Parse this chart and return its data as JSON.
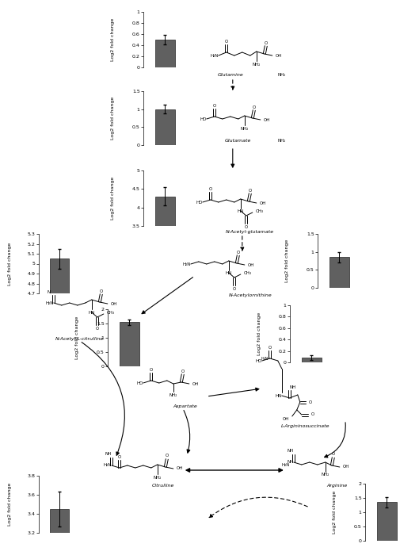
{
  "background": "#ffffff",
  "bar_color": "#606060",
  "error_color": "#333333",
  "bars": {
    "glutamine": {
      "value": 0.5,
      "error": 0.08,
      "ylim": [
        0,
        1
      ],
      "yticks": [
        0,
        0.2,
        0.4,
        0.6,
        0.8,
        1
      ]
    },
    "glutamate": {
      "value": 1.0,
      "error": 0.12,
      "ylim": [
        0,
        1.5
      ],
      "yticks": [
        0,
        0.5,
        1,
        1.5
      ]
    },
    "n_acetyl_glu": {
      "value": 4.3,
      "error": 0.25,
      "ylim": [
        3.5,
        5
      ],
      "yticks": [
        3.5,
        4,
        4.5,
        5
      ]
    },
    "n_acetylornithine": {
      "value": 0.85,
      "error": 0.15,
      "ylim": [
        0,
        1.5
      ],
      "yticks": [
        0,
        0.5,
        1,
        1.5
      ]
    },
    "n_acetyl_cit": {
      "value": 5.05,
      "error": 0.1,
      "ylim": [
        4.7,
        5.3
      ],
      "yticks": [
        4.7,
        4.8,
        4.9,
        5.0,
        5.1,
        5.2,
        5.3
      ]
    },
    "aspartate": {
      "value": 1.55,
      "error": 0.1,
      "ylim": [
        0,
        2
      ],
      "yticks": [
        0,
        0.5,
        1,
        1.5,
        2
      ]
    },
    "l_argsucc": {
      "value": 0.08,
      "error": 0.04,
      "ylim": [
        0,
        1
      ],
      "yticks": [
        0,
        0.2,
        0.4,
        0.6,
        0.8,
        1
      ]
    },
    "citrulline": {
      "value": 3.45,
      "error": 0.18,
      "ylim": [
        3.2,
        3.8
      ],
      "yticks": [
        3.2,
        3.4,
        3.6,
        3.8
      ]
    },
    "arginine": {
      "value": 1.35,
      "error": 0.18,
      "ylim": [
        0,
        2
      ],
      "yticks": [
        0,
        0.5,
        1,
        1.5,
        2
      ]
    }
  },
  "ylabel": "Log2 fold change"
}
